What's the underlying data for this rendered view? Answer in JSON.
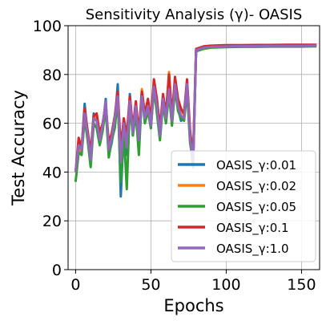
{
  "chart_data": {
    "type": "line",
    "title": "Sensitivity Analysis (γ)- OASIS",
    "xlabel": "Epochs",
    "ylabel": "Test Accuracy",
    "xlim": [
      -5,
      162
    ],
    "ylim": [
      0,
      100
    ],
    "xticks": [
      0,
      50,
      100,
      150
    ],
    "yticks": [
      0,
      20,
      40,
      60,
      80,
      100
    ],
    "grid": true,
    "legend_position": "lower-right",
    "series": [
      {
        "name": "OASIS_γ:0.01",
        "color": "#1f77b4",
        "x": [
          0,
          2,
          4,
          6,
          8,
          10,
          12,
          14,
          16,
          18,
          20,
          22,
          24,
          26,
          28,
          30,
          32,
          34,
          36,
          38,
          40,
          42,
          44,
          46,
          48,
          50,
          52,
          54,
          56,
          58,
          60,
          62,
          64,
          66,
          68,
          70,
          72,
          74,
          76,
          78,
          80,
          85,
          90,
          100,
          110,
          120,
          130,
          140,
          150,
          160
        ],
        "y": [
          40,
          52,
          49,
          68,
          54,
          47,
          64,
          62,
          52,
          58,
          70,
          47,
          52,
          60,
          76,
          30,
          58,
          47,
          72,
          55,
          68,
          50,
          70,
          62,
          66,
          58,
          76,
          66,
          54,
          70,
          61,
          73,
          60,
          75,
          66,
          61,
          62,
          75,
          53,
          42,
          90,
          91,
          91.5,
          91.6,
          91.7,
          91.8,
          91.8,
          91.9,
          91.9,
          92.0
        ]
      },
      {
        "name": "OASIS_γ:0.02",
        "color": "#ff7f0e",
        "x": [
          0,
          2,
          4,
          6,
          8,
          10,
          12,
          14,
          16,
          18,
          20,
          22,
          24,
          26,
          28,
          30,
          32,
          34,
          36,
          38,
          40,
          42,
          44,
          46,
          48,
          50,
          52,
          54,
          56,
          58,
          60,
          62,
          64,
          66,
          68,
          70,
          72,
          74,
          76,
          78,
          80,
          85,
          90,
          100,
          110,
          120,
          130,
          140,
          150,
          160
        ],
        "y": [
          40,
          50,
          48,
          65,
          56,
          46,
          61,
          63,
          55,
          58,
          67,
          50,
          55,
          61,
          72,
          48,
          62,
          52,
          70,
          58,
          66,
          55,
          74,
          63,
          68,
          60,
          77,
          68,
          57,
          71,
          63,
          81,
          62,
          78,
          69,
          66,
          63,
          77,
          56,
          48,
          90,
          91,
          91.4,
          91.6,
          91.7,
          91.8,
          91.9,
          92.0,
          92.0,
          92.0
        ]
      },
      {
        "name": "OASIS_γ:0.05",
        "color": "#2ca02c",
        "x": [
          0,
          2,
          4,
          6,
          8,
          10,
          12,
          14,
          16,
          18,
          20,
          22,
          24,
          26,
          28,
          30,
          32,
          34,
          36,
          38,
          40,
          42,
          44,
          46,
          48,
          50,
          52,
          54,
          56,
          58,
          60,
          62,
          64,
          66,
          68,
          70,
          72,
          74,
          76,
          78,
          80,
          85,
          90,
          100,
          110,
          120,
          130,
          140,
          150,
          160
        ],
        "y": [
          36,
          48,
          47,
          62,
          53,
          42,
          60,
          58,
          51,
          57,
          66,
          46,
          53,
          58,
          70,
          36,
          56,
          33,
          68,
          55,
          64,
          47,
          72,
          60,
          65,
          58,
          74,
          64,
          53,
          68,
          60,
          72,
          59,
          74,
          65,
          62,
          61,
          73,
          52,
          44,
          89.5,
          90.5,
          91.0,
          91.2,
          91.3,
          91.3,
          91.4,
          91.4,
          91.4,
          91.5
        ]
      },
      {
        "name": "OASIS_γ:0.1",
        "color": "#d62728",
        "x": [
          0,
          2,
          4,
          6,
          8,
          10,
          12,
          14,
          16,
          18,
          20,
          22,
          24,
          26,
          28,
          30,
          32,
          34,
          36,
          38,
          40,
          42,
          44,
          46,
          48,
          50,
          52,
          54,
          56,
          58,
          60,
          62,
          64,
          66,
          68,
          70,
          72,
          74,
          76,
          78,
          80,
          85,
          90,
          100,
          110,
          120,
          130,
          140,
          150,
          160
        ],
        "y": [
          40,
          54,
          50,
          66,
          57,
          48,
          63,
          64,
          56,
          60,
          68,
          52,
          56,
          63,
          73,
          50,
          62,
          55,
          71,
          58,
          69,
          56,
          73,
          64,
          70,
          62,
          78,
          70,
          58,
          72,
          64,
          80,
          63,
          79,
          70,
          66,
          64,
          78,
          57,
          46,
          90.5,
          91.5,
          91.8,
          92.0,
          92.0,
          92.1,
          92.1,
          92.2,
          92.2,
          92.2
        ]
      },
      {
        "name": "OASIS_γ:1.0",
        "color": "#9467bd",
        "x": [
          0,
          2,
          4,
          6,
          8,
          10,
          12,
          14,
          16,
          18,
          20,
          22,
          24,
          26,
          28,
          30,
          32,
          34,
          36,
          38,
          40,
          42,
          44,
          46,
          48,
          50,
          52,
          54,
          56,
          58,
          60,
          62,
          64,
          66,
          68,
          70,
          72,
          74,
          76,
          78,
          80,
          85,
          90,
          100,
          110,
          120,
          130,
          140,
          150,
          160
        ],
        "y": [
          40,
          51,
          49,
          64,
          55,
          45,
          62,
          61,
          53,
          59,
          69,
          49,
          54,
          62,
          71,
          44,
          60,
          50,
          69,
          56,
          67,
          53,
          71,
          62,
          67,
          59,
          75,
          67,
          55,
          70,
          62,
          74,
          61,
          76,
          67,
          63,
          62,
          76,
          54,
          45,
          90,
          91,
          91.3,
          91.5,
          91.6,
          91.6,
          91.7,
          91.7,
          91.7,
          91.8
        ]
      }
    ]
  }
}
